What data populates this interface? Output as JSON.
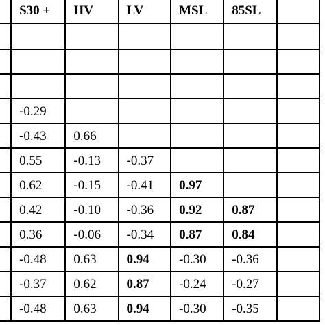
{
  "table": {
    "headers": [
      "",
      "S30 +",
      "HV",
      "LV",
      "MSL",
      "85SL"
    ],
    "rows": [
      [
        "",
        "",
        "",
        "",
        "",
        ""
      ],
      [
        "",
        "",
        "",
        "",
        "",
        ""
      ],
      [
        "",
        "",
        "",
        "",
        "",
        ""
      ],
      [
        "",
        "-0.29",
        "",
        "",
        "",
        ""
      ],
      [
        "",
        "-0.43",
        "0.66",
        "",
        "",
        ""
      ],
      [
        "",
        "0.55",
        "-0.13",
        "-0.37",
        "",
        ""
      ],
      [
        "",
        "0.62",
        "-0.15",
        "-0.41",
        "0.97",
        ""
      ],
      [
        "",
        "0.42",
        "-0.10",
        "-0.36",
        "0.92",
        "0.87"
      ],
      [
        "",
        "0.36",
        "-0.06",
        "-0.34",
        "0.87",
        "0.84"
      ],
      [
        "",
        "-0.48",
        "0.63",
        "0.94",
        "-0.30",
        "-0.36"
      ],
      [
        "",
        "-0.37",
        "0.62",
        "0.87",
        "-0.24",
        "-0.27"
      ],
      [
        "",
        "-0.48",
        "0.63",
        "0.94",
        "-0.30",
        "-0.35"
      ]
    ],
    "bold_cells": [
      [
        6,
        4
      ],
      [
        7,
        4
      ],
      [
        7,
        5
      ],
      [
        8,
        4
      ],
      [
        8,
        5
      ],
      [
        9,
        3
      ],
      [
        10,
        3
      ],
      [
        11,
        3
      ]
    ]
  }
}
